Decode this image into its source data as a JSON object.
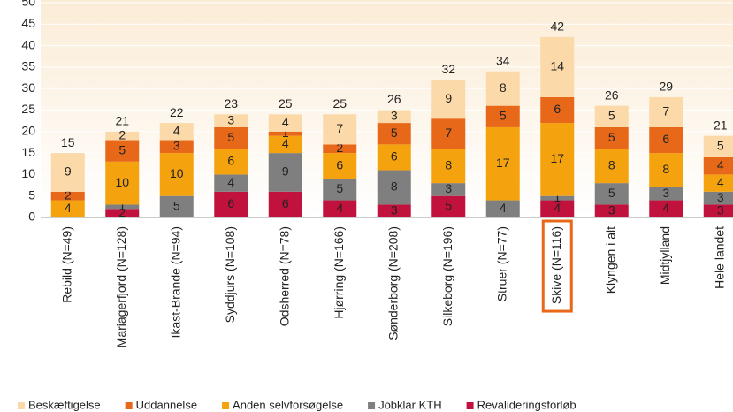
{
  "chart_data": {
    "type": "stacked_bar",
    "categories": [
      "Rebild (N=49)",
      "Mariagerfjord (N=128)",
      "Ikast-Brande (N=94)",
      "Syddjurs (N=108)",
      "Odsherred (N=78)",
      "Hjørring (N=166)",
      "Sønderborg (N=208)",
      "Silkeborg (N=196)",
      "Struer (N=77)",
      "Skive (N=116)",
      "Klyngen i alt",
      "Midtjylland",
      "Hele landet"
    ],
    "series": [
      {
        "name": "Revalideringsforløb",
        "color": "#c0123c",
        "values": [
          0,
          2,
          0,
          6,
          6,
          4,
          3,
          5,
          0,
          4,
          3,
          4,
          3
        ]
      },
      {
        "name": "Jobklar KTH",
        "color": "#7f7f7f",
        "values": [
          0,
          1,
          5,
          4,
          9,
          5,
          8,
          3,
          4,
          1,
          5,
          3,
          3
        ]
      },
      {
        "name": "Anden selvforsøgelse",
        "color": "#f4a30e",
        "values": [
          4,
          10,
          10,
          6,
          4,
          6,
          6,
          8,
          17,
          17,
          8,
          8,
          4
        ]
      },
      {
        "name": "Uddannelse",
        "color": "#e8681a",
        "values": [
          2,
          5,
          3,
          5,
          1,
          2,
          5,
          7,
          5,
          6,
          5,
          6,
          4
        ]
      },
      {
        "name": "Beskæftigelse",
        "color": "#fbd9a8",
        "values": [
          9,
          2,
          4,
          3,
          4,
          7,
          3,
          9,
          8,
          14,
          5,
          7,
          5
        ]
      }
    ],
    "totals": [
      15,
      21,
      22,
      23,
      25,
      25,
      26,
      32,
      34,
      42,
      26,
      29,
      21
    ],
    "legend_order": [
      4,
      3,
      2,
      1,
      0
    ],
    "highlight": "Skive (N=116)",
    "highlight_color": "#e8681a",
    "ylim": [
      0,
      50
    ],
    "yticks": [
      0,
      5,
      10,
      15,
      20,
      25,
      30,
      35,
      40,
      45,
      50
    ],
    "grid": true
  }
}
